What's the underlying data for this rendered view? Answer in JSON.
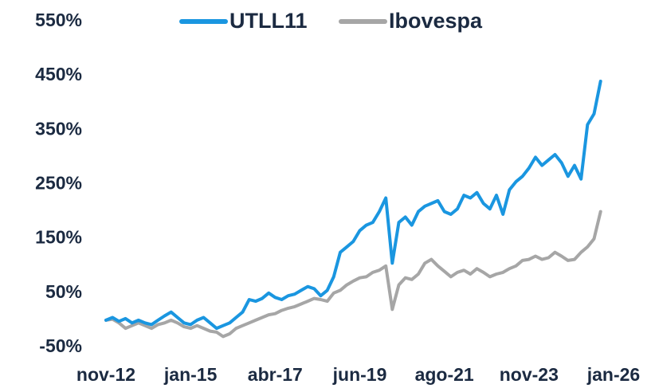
{
  "chart_data": {
    "type": "line",
    "categories": [
      "nov-12",
      null,
      null,
      null,
      null,
      null,
      null,
      null,
      null,
      null,
      null,
      null,
      null,
      "jan-15",
      null,
      null,
      null,
      null,
      null,
      null,
      null,
      null,
      null,
      null,
      null,
      null,
      "abr-17",
      null,
      null,
      null,
      null,
      null,
      null,
      null,
      null,
      null,
      null,
      null,
      null,
      "jun-19",
      null,
      null,
      null,
      null,
      null,
      null,
      null,
      null,
      null,
      null,
      null,
      null,
      "ago-21",
      null,
      null,
      null,
      null,
      null,
      null,
      null,
      null,
      null,
      null,
      null,
      null,
      "nov-23",
      null,
      null,
      null,
      null,
      null,
      null,
      null,
      null,
      null,
      null,
      null,
      null,
      "jan-26"
    ],
    "series": [
      {
        "name": "UTLL11",
        "color": "#1a96e0",
        "values": [
          0,
          5,
          -2,
          3,
          -5,
          0,
          -5,
          -8,
          0,
          8,
          15,
          5,
          -5,
          -8,
          0,
          5,
          -5,
          -15,
          -10,
          -5,
          5,
          15,
          38,
          35,
          40,
          50,
          42,
          38,
          45,
          48,
          55,
          62,
          58,
          45,
          55,
          80,
          125,
          135,
          145,
          165,
          175,
          180,
          200,
          225,
          105,
          180,
          190,
          175,
          200,
          210,
          215,
          220,
          200,
          195,
          205,
          230,
          225,
          235,
          215,
          205,
          230,
          195,
          240,
          255,
          265,
          280,
          300,
          285,
          295,
          305,
          290,
          265,
          285,
          260,
          360,
          380,
          440,
          null,
          null
        ]
      },
      {
        "name": "Ibovespa",
        "color": "#a6a6a6",
        "values": [
          0,
          2,
          -5,
          -15,
          -10,
          -5,
          -10,
          -15,
          -8,
          -5,
          0,
          -5,
          -12,
          -15,
          -10,
          -15,
          -20,
          -22,
          -30,
          -25,
          -15,
          -10,
          -5,
          0,
          5,
          10,
          12,
          18,
          22,
          25,
          30,
          35,
          40,
          38,
          35,
          50,
          55,
          65,
          72,
          78,
          80,
          88,
          92,
          100,
          20,
          65,
          78,
          75,
          85,
          105,
          112,
          100,
          90,
          80,
          88,
          92,
          85,
          95,
          88,
          80,
          85,
          88,
          95,
          100,
          110,
          112,
          118,
          112,
          115,
          125,
          118,
          110,
          112,
          125,
          135,
          150,
          200,
          null,
          null
        ]
      }
    ],
    "ylim": [
      -50,
      550
    ],
    "yticks": [
      {
        "value": -50,
        "label": "-50%"
      },
      {
        "value": 50,
        "label": "50%"
      },
      {
        "value": 150,
        "label": "150%"
      },
      {
        "value": 250,
        "label": "250%"
      },
      {
        "value": 350,
        "label": "350%"
      },
      {
        "value": 450,
        "label": "450%"
      },
      {
        "value": 550,
        "label": "550%"
      }
    ],
    "grid": false,
    "legend": "top"
  }
}
